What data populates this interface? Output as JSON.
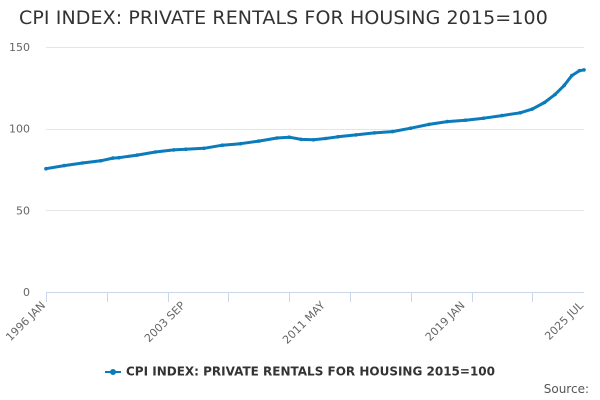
{
  "chart_data": {
    "type": "line",
    "title": "CPI INDEX: PRIVATE RENTALS FOR HOUSING 2015=100",
    "xlabel": "",
    "ylabel": "",
    "x_start": "1996 JAN",
    "x_end": "2025 JUL",
    "x_tick_labels": [
      "1996 JAN",
      "2003 SEP",
      "2011 MAY",
      "2019 JAN",
      "2025 JUL"
    ],
    "ylim": [
      0,
      150
    ],
    "y_ticks": [
      0,
      50,
      100,
      150
    ],
    "grid": true,
    "legend_position": "bottom",
    "color": "#0b7bbb",
    "series": [
      {
        "name": "CPI INDEX: PRIVATE RENTALS FOR HOUSING 2015=100",
        "points": [
          [
            "1996 JAN",
            75.5
          ],
          [
            "1997 JAN",
            77.4
          ],
          [
            "1998 JAN",
            79.0
          ],
          [
            "1999 JAN",
            80.3
          ],
          [
            "1999 SEP",
            82.0
          ],
          [
            "2000 JAN",
            82.2
          ],
          [
            "2001 JAN",
            83.8
          ],
          [
            "2002 JAN",
            85.7
          ],
          [
            "2003 JAN",
            87.0
          ],
          [
            "2003 SEP",
            87.4
          ],
          [
            "2004 SEP",
            88.0
          ],
          [
            "2005 SEP",
            89.9
          ],
          [
            "2006 SEP",
            90.8
          ],
          [
            "2007 SEP",
            92.4
          ],
          [
            "2008 SEP",
            94.3
          ],
          [
            "2009 MAY",
            94.8
          ],
          [
            "2010 JAN",
            93.4
          ],
          [
            "2010 SEP",
            93.2
          ],
          [
            "2011 MAY",
            94.0
          ],
          [
            "2012 JAN",
            95.0
          ],
          [
            "2013 JAN",
            96.2
          ],
          [
            "2014 JAN",
            97.4
          ],
          [
            "2015 JAN",
            98.2
          ],
          [
            "2016 JAN",
            100.3
          ],
          [
            "2017 JAN",
            102.6
          ],
          [
            "2018 JAN",
            104.3
          ],
          [
            "2019 JAN",
            105.2
          ],
          [
            "2020 JAN",
            106.4
          ],
          [
            "2021 JAN",
            108.0
          ],
          [
            "2022 JAN",
            109.7
          ],
          [
            "2022 SEP",
            112.0
          ],
          [
            "2023 MAY",
            116.0
          ],
          [
            "2023 DEC",
            121.0
          ],
          [
            "2024 JUN",
            126.5
          ],
          [
            "2024 NOV",
            132.5
          ],
          [
            "2025 APR",
            135.5
          ],
          [
            "2025 JUL",
            136.0
          ]
        ]
      }
    ]
  },
  "credits": "Source:"
}
